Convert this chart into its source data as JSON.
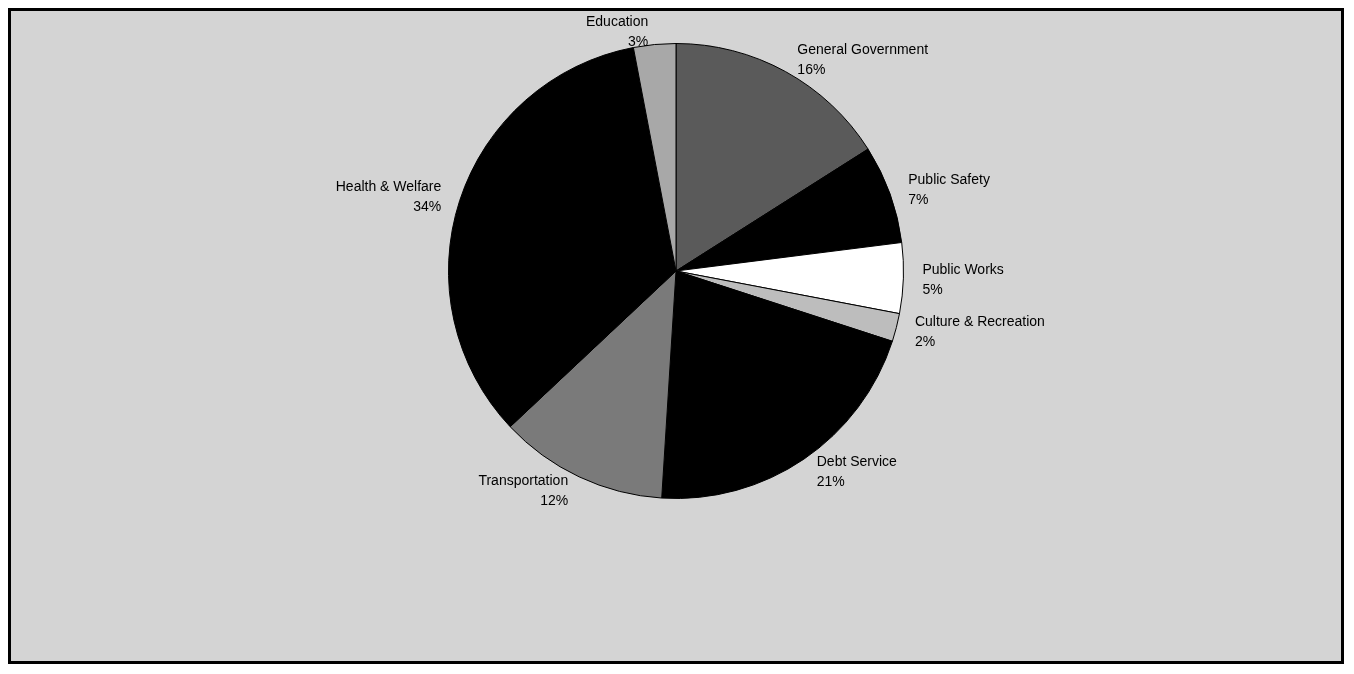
{
  "chart_data": {
    "type": "pie",
    "categories": [
      "General Government",
      "Public Safety",
      "Public Works",
      "Culture & Recreation",
      "Debt Service",
      "Transportation",
      "Health & Welfare",
      "Education"
    ],
    "values": [
      16,
      7,
      5,
      2,
      21,
      12,
      34,
      3
    ],
    "value_labels": [
      "16%",
      "7%",
      "5%",
      "2%",
      "21%",
      "12%",
      "34%",
      "3%"
    ],
    "colors": [
      "#5a5a5a",
      "#000000",
      "#ffffff",
      "#bdbdbd",
      "#000000",
      "#7a7a7a",
      "#000000",
      "#a8a8a8"
    ],
    "legend": false
  }
}
